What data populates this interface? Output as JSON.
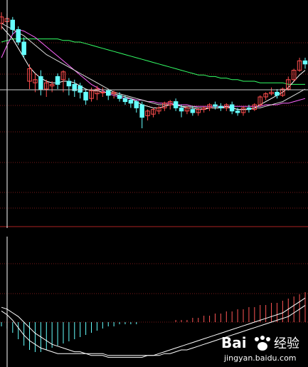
{
  "colors": {
    "background": "#000000",
    "up_candle": "#ff4d4d",
    "down_candle": "#66ffff",
    "ma_white": "#ffffff",
    "ma_magenta": "#ff66ff",
    "ma_green": "#33ff66",
    "grid_red": "#7a1a1a",
    "macd_pos": "#ff5555",
    "macd_neg": "#66ffff",
    "cursor": "#ffffff"
  },
  "watermark": {
    "brand": "Bai",
    "brand2": "经验",
    "url": "jingyan.baidu.com"
  },
  "chart_data": {
    "type": "candlestick",
    "title": "",
    "xlabel": "",
    "ylabel": "",
    "ylim": [
      0,
      100
    ],
    "candles": [
      [
        92,
        96,
        99,
        88
      ],
      [
        93,
        95,
        98,
        90
      ],
      [
        94,
        88,
        96,
        85
      ],
      [
        88,
        80,
        90,
        78
      ],
      [
        80,
        72,
        83,
        70
      ],
      [
        55,
        63,
        66,
        50
      ],
      [
        54,
        56,
        60,
        48
      ],
      [
        58,
        50,
        62,
        46
      ],
      [
        50,
        54,
        56,
        45
      ],
      [
        52,
        53,
        55,
        48
      ],
      [
        58,
        53,
        60,
        50
      ],
      [
        56,
        61,
        62,
        48
      ],
      [
        55,
        52,
        57,
        46
      ],
      [
        53,
        49,
        56,
        45
      ],
      [
        52,
        48,
        54,
        44
      ],
      [
        48,
        43,
        50,
        40
      ],
      [
        44,
        49,
        51,
        42
      ],
      [
        47,
        50,
        52,
        43
      ],
      [
        48,
        48,
        51,
        45
      ],
      [
        49,
        46,
        50,
        43
      ],
      [
        47,
        48,
        49,
        44
      ],
      [
        46,
        44,
        48,
        42
      ],
      [
        44,
        42,
        46,
        40
      ],
      [
        43,
        41,
        44,
        38
      ],
      [
        42,
        38,
        43,
        35
      ],
      [
        40,
        32,
        42,
        25
      ],
      [
        33,
        36,
        37,
        30
      ],
      [
        34,
        37,
        38,
        32
      ],
      [
        36,
        38,
        39,
        34
      ],
      [
        38,
        41,
        42,
        36
      ],
      [
        40,
        42,
        43,
        37
      ],
      [
        42,
        38,
        44,
        36
      ],
      [
        38,
        36,
        40,
        32
      ],
      [
        36,
        38,
        39,
        34
      ],
      [
        37,
        35,
        39,
        33
      ],
      [
        35,
        37,
        38,
        33
      ],
      [
        37,
        38,
        39,
        35
      ],
      [
        38,
        40,
        41,
        36
      ],
      [
        40,
        39,
        42,
        37
      ],
      [
        39,
        38,
        41,
        36
      ],
      [
        38,
        40,
        41,
        36
      ],
      [
        40,
        36,
        42,
        34
      ],
      [
        36,
        35,
        38,
        33
      ],
      [
        35,
        38,
        39,
        33
      ],
      [
        38,
        37,
        40,
        35
      ],
      [
        37,
        40,
        41,
        36
      ],
      [
        40,
        45,
        46,
        39
      ],
      [
        45,
        47,
        48,
        43
      ],
      [
        47,
        48,
        51,
        46
      ],
      [
        48,
        46,
        50,
        44
      ],
      [
        46,
        50,
        51,
        45
      ],
      [
        50,
        56,
        58,
        49
      ],
      [
        56,
        62,
        63,
        55
      ],
      [
        62,
        68,
        70,
        61
      ],
      [
        68,
        66,
        70,
        63
      ]
    ],
    "ma_short": [
      90,
      86,
      82,
      76,
      70,
      64,
      60,
      57,
      55,
      54,
      54,
      55,
      55,
      54,
      52,
      50,
      49,
      49,
      48,
      48,
      47,
      46,
      45,
      44,
      42,
      40,
      39,
      38,
      38,
      39,
      40,
      40,
      39,
      38,
      38,
      37,
      37,
      38,
      38,
      38,
      39,
      38,
      37,
      37,
      37,
      38,
      40,
      42,
      44,
      46,
      48,
      51,
      55,
      59,
      62
    ],
    "ma_mid": [
      92,
      90,
      88,
      86,
      84,
      81,
      78,
      75,
      72,
      70,
      68,
      66,
      64,
      62,
      60,
      58,
      56,
      54,
      52,
      50,
      48,
      47,
      46,
      45,
      44,
      43,
      42,
      41,
      40,
      40,
      40,
      40,
      39,
      39,
      39,
      38,
      38,
      38,
      38,
      38,
      38,
      38,
      37,
      37,
      37,
      38,
      38,
      39,
      40,
      41,
      42,
      44,
      46,
      48,
      50
    ],
    "ma_long": [
      70,
      78,
      85,
      88,
      87,
      85,
      83,
      80,
      77,
      74,
      71,
      68,
      65,
      62,
      59,
      56,
      53,
      51,
      49,
      47,
      46,
      45,
      44,
      44,
      43,
      43,
      42,
      42,
      41,
      41,
      41,
      40,
      40,
      40,
      39,
      39,
      39,
      39,
      39,
      39,
      39,
      39,
      39,
      39,
      39,
      39,
      39,
      40,
      40,
      40,
      41,
      41,
      42,
      43,
      44
    ],
    "ma_green": [
      80,
      81,
      82,
      82,
      82,
      82,
      82,
      82,
      82,
      82,
      82,
      81,
      81,
      80,
      80,
      79,
      78,
      77,
      76,
      75,
      74,
      73,
      72,
      71,
      70,
      69,
      68,
      67,
      66,
      65,
      64,
      63,
      62,
      61,
      60,
      59,
      59,
      58,
      58,
      57,
      57,
      56,
      56,
      55,
      55,
      55,
      54,
      54,
      54,
      54,
      54,
      53,
      53,
      53,
      53
    ],
    "macd_hist": [
      -2,
      -3,
      -5,
      -8,
      -11,
      -13,
      -14,
      -14,
      -13,
      -12,
      -11,
      -10,
      -9,
      -8,
      -7,
      -6,
      -5,
      -4,
      -3,
      -2,
      -2,
      -1,
      -1,
      -1,
      -1,
      0,
      0,
      0,
      0,
      0,
      0,
      1,
      1,
      1,
      2,
      2,
      3,
      3,
      4,
      4,
      5,
      5,
      6,
      6,
      7,
      7,
      8,
      8,
      9,
      9,
      10,
      11,
      12,
      13,
      14
    ],
    "dif": [
      6,
      4,
      1,
      -3,
      -7,
      -10,
      -12,
      -14,
      -15,
      -16,
      -17,
      -17,
      -17,
      -17,
      -17,
      -17,
      -18,
      -18,
      -18,
      -19,
      -19,
      -19,
      -19,
      -19,
      -19,
      -19,
      -18,
      -18,
      -17,
      -16,
      -15,
      -14,
      -13,
      -12,
      -11,
      -10,
      -9,
      -8,
      -7,
      -6,
      -5,
      -4,
      -3,
      -2,
      -1,
      0,
      1,
      2,
      3,
      4,
      5,
      7,
      9,
      11,
      13
    ],
    "dea": [
      8,
      7,
      5,
      3,
      0,
      -3,
      -6,
      -8,
      -10,
      -12,
      -13,
      -14,
      -15,
      -16,
      -16,
      -17,
      -17,
      -17,
      -17,
      -18,
      -18,
      -18,
      -18,
      -18,
      -18,
      -18,
      -18,
      -18,
      -18,
      -17,
      -17,
      -16,
      -15,
      -15,
      -14,
      -13,
      -12,
      -11,
      -10,
      -9,
      -8,
      -7,
      -6,
      -5,
      -4,
      -3,
      -2,
      -1,
      0,
      1,
      2,
      3,
      5,
      7,
      9
    ]
  }
}
